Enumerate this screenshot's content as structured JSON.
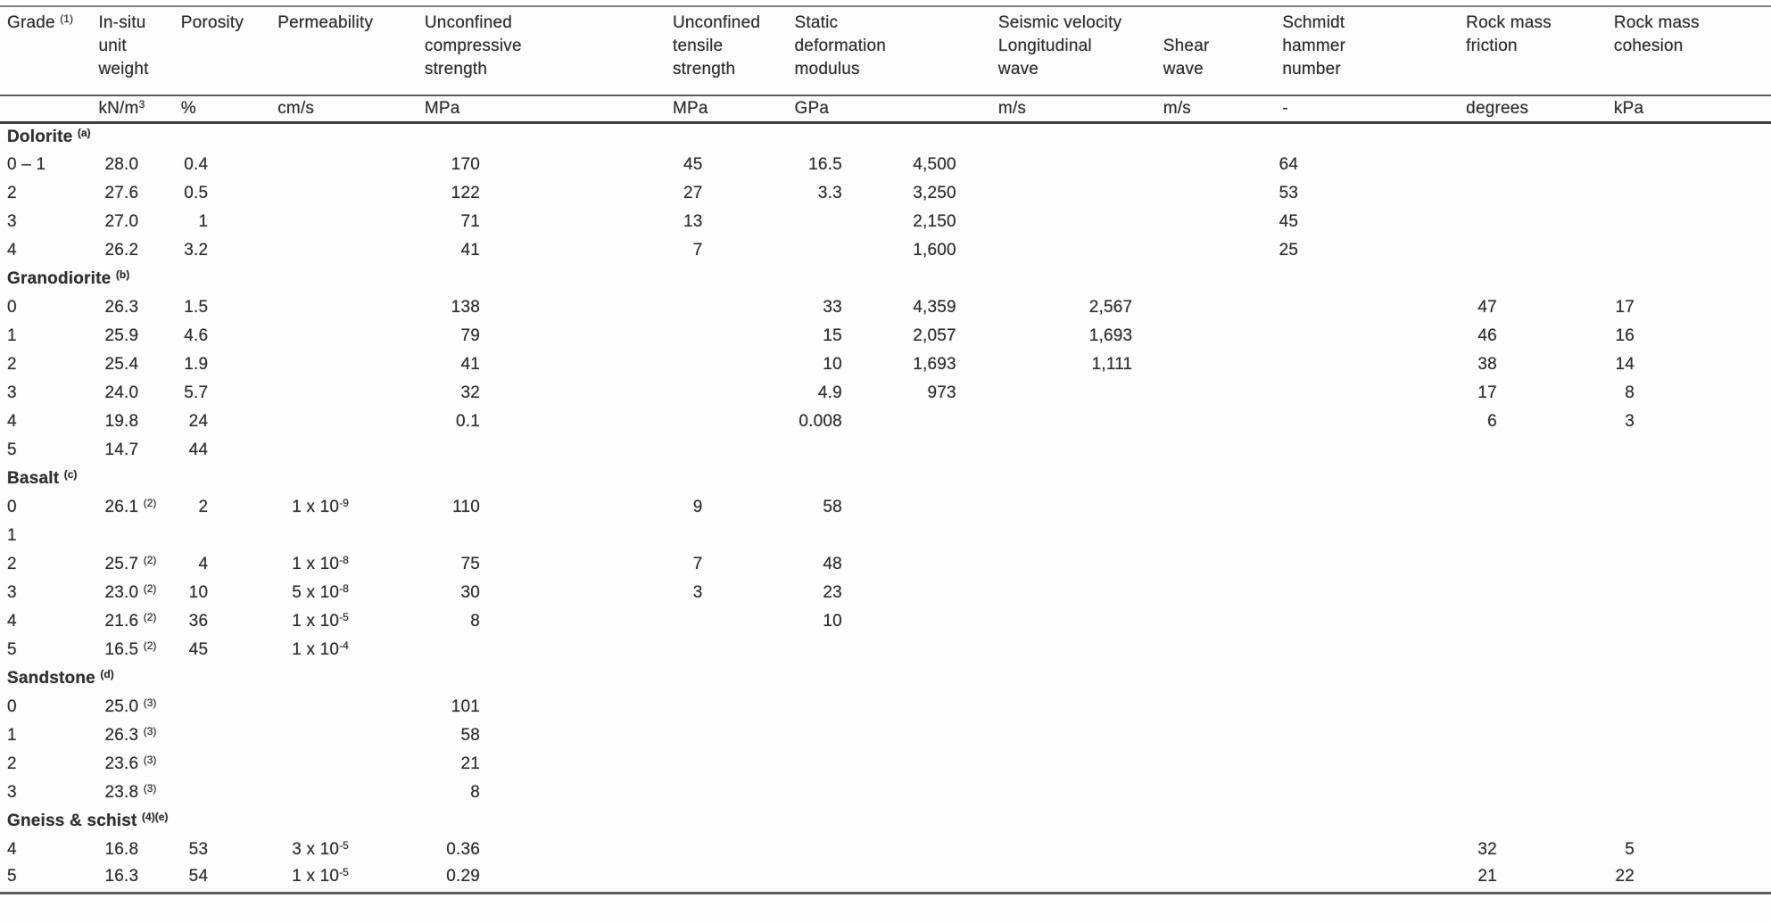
{
  "colors": {
    "background": "#fdfdfd",
    "text": "#303030",
    "line_dark": "#3e3e3e",
    "line_mid": "#5f5f5f",
    "line_light": "#7d7d7d",
    "line_faint": "#9a9a9a"
  },
  "table": {
    "seismic_group_label": "Seismic velocity",
    "columns": [
      {
        "id": "grade",
        "label": "Grade ^{(1)}",
        "unit": ""
      },
      {
        "id": "unit_weight",
        "label": "In-situ\nunit\nweight",
        "unit": "kN/m^{3}"
      },
      {
        "id": "porosity",
        "label": "Porosity",
        "unit": "%"
      },
      {
        "id": "permeability",
        "label": "Permeability",
        "unit": "cm/s"
      },
      {
        "id": "ucs",
        "label": "Unconfined\ncompressive\nstrength",
        "unit": "MPa"
      },
      {
        "id": "uts",
        "label": "Unconfined\ntensile\nstrength",
        "unit": "MPa"
      },
      {
        "id": "sdm",
        "label": "Static\ndeformation\nmodulus",
        "unit": "GPa"
      },
      {
        "id": "vp",
        "label": "Longitudinal\nwave",
        "unit": "m/s",
        "group": "Seismic velocity"
      },
      {
        "id": "vs",
        "label": "Shear\nwave",
        "unit": "m/s",
        "group": "Seismic velocity"
      },
      {
        "id": "schmidt",
        "label": "Schmidt\nhammer\nnumber",
        "unit": "-"
      },
      {
        "id": "friction",
        "label": "Rock mass\nfriction",
        "unit": "degrees"
      },
      {
        "id": "cohesion",
        "label": "Rock mass\ncohesion",
        "unit": "kPa"
      }
    ],
    "sections": [
      {
        "name": "Dolorite ^{(a)}",
        "rows": [
          [
            "0 – 1",
            "28.0",
            "0.4",
            "",
            "170",
            "45",
            "16.5",
            "4,500",
            "",
            "64",
            "",
            ""
          ],
          [
            "2",
            "27.6",
            "0.5",
            "",
            "122",
            "27",
            "3.3",
            "3,250",
            "",
            "53",
            "",
            ""
          ],
          [
            "3",
            "27.0",
            "1",
            "",
            "71",
            "13",
            "",
            "2,150",
            "",
            "45",
            "",
            ""
          ],
          [
            "4",
            "26.2",
            "3.2",
            "",
            "41",
            "7",
            "",
            "1,600",
            "",
            "25",
            "",
            ""
          ]
        ]
      },
      {
        "name": "Granodiorite ^{(b)}",
        "rows": [
          [
            "0",
            "26.3",
            "1.5",
            "",
            "138",
            "",
            "33",
            "4,359",
            "2,567",
            "",
            "47",
            "17"
          ],
          [
            "1",
            "25.9",
            "4.6",
            "",
            "79",
            "",
            "15",
            "2,057",
            "1,693",
            "",
            "46",
            "16"
          ],
          [
            "2",
            "25.4",
            "1.9",
            "",
            "41",
            "",
            "10",
            "1,693",
            "1,111",
            "",
            "38",
            "14"
          ],
          [
            "3",
            "24.0",
            "5.7",
            "",
            "32",
            "",
            "4.9",
            "973",
            "",
            "",
            "17",
            "8"
          ],
          [
            "4",
            "19.8",
            "24",
            "",
            "0.1",
            "",
            "0.008",
            "",
            "",
            "",
            "6",
            "3"
          ],
          [
            "5",
            "14.7",
            "44",
            "",
            "",
            "",
            "",
            "",
            "",
            "",
            "",
            ""
          ]
        ]
      },
      {
        "name": "Basalt ^{(c)}",
        "rows": [
          [
            "0",
            "26.1 ^{(2)}",
            "2",
            "1 x 10^{-9}",
            "110",
            "9",
            "58",
            "",
            "",
            "",
            "",
            ""
          ],
          [
            "1",
            "",
            "",
            "",
            "",
            "",
            "",
            "",
            "",
            "",
            "",
            ""
          ],
          [
            "2",
            "25.7 ^{(2)}",
            "4",
            "1 x 10^{-8}",
            "75",
            "7",
            "48",
            "",
            "",
            "",
            "",
            ""
          ],
          [
            "3",
            "23.0 ^{(2)}",
            "10",
            "5 x 10^{-8}",
            "30",
            "3",
            "23",
            "",
            "",
            "",
            "",
            ""
          ],
          [
            "4",
            "21.6 ^{(2)}",
            "36",
            "1 x 10^{-5}",
            "8",
            "",
            "10",
            "",
            "",
            "",
            "",
            ""
          ],
          [
            "5",
            "16.5 ^{(2)}",
            "45",
            "1 x 10^{-4}",
            "",
            "",
            "",
            "",
            "",
            "",
            "",
            ""
          ]
        ]
      },
      {
        "name": "Sandstone ^{(d)}",
        "rows": [
          [
            "0",
            "25.0 ^{(3)}",
            "",
            "",
            "101",
            "",
            "",
            "",
            "",
            "",
            "",
            ""
          ],
          [
            "1",
            "26.3 ^{(3)}",
            "",
            "",
            "58",
            "",
            "",
            "",
            "",
            "",
            "",
            ""
          ],
          [
            "2",
            "23.6 ^{(3)}",
            "",
            "",
            "21",
            "",
            "",
            "",
            "",
            "",
            "",
            ""
          ],
          [
            "3",
            "23.8 ^{(3)}",
            "",
            "",
            "8",
            "",
            "",
            "",
            "",
            "",
            "",
            ""
          ]
        ]
      },
      {
        "name": "Gneiss & schist ^{(4)(e)}",
        "rows": [
          [
            "4",
            "16.8",
            "53",
            "3 x 10^{-5}",
            "0.36",
            "",
            "",
            "",
            "",
            "",
            "32",
            "5"
          ],
          [
            "5",
            "16.3",
            "54",
            "1 x 10^{-5}",
            "0.29",
            "",
            "",
            "",
            "",
            "",
            "21",
            "22"
          ]
        ]
      }
    ]
  }
}
